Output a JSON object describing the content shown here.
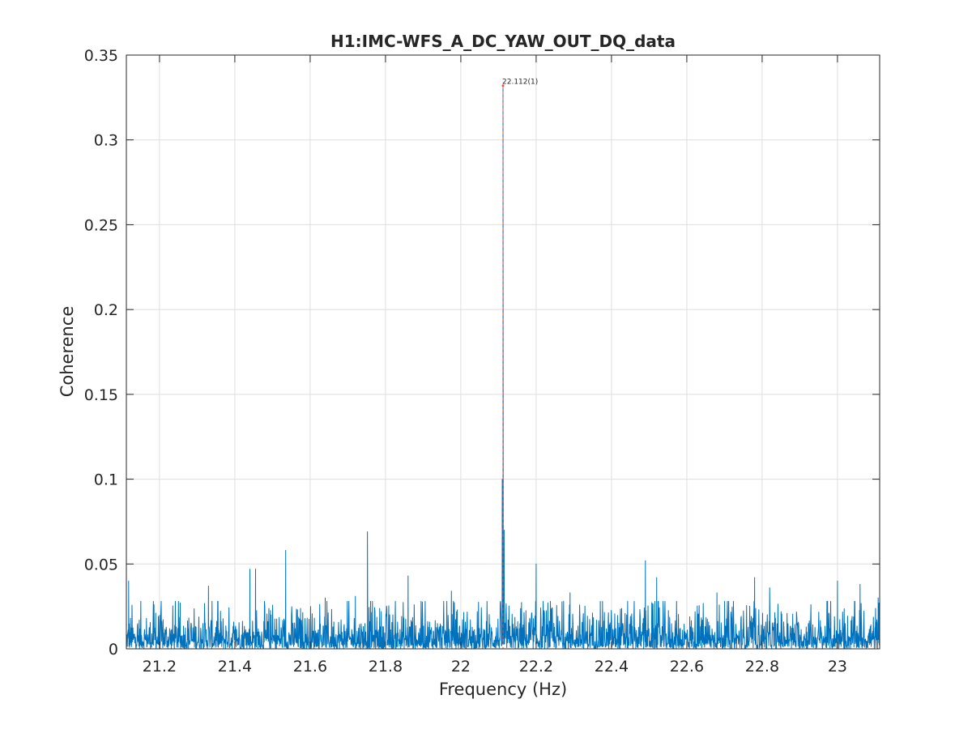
{
  "chart_data": {
    "type": "line",
    "title": "H1:IMC-WFS_A_DC_YAW_OUT_DQ_data",
    "xlabel": "Frequency (Hz)",
    "ylabel": "Coherence",
    "xlim": [
      21.112,
      23.112
    ],
    "ylim": [
      0,
      0.35
    ],
    "xticks": [
      21.2,
      21.4,
      21.6,
      21.8,
      22,
      22.2,
      22.4,
      22.6,
      22.8,
      23
    ],
    "xtick_labels": [
      "21.2",
      "21.4",
      "21.6",
      "21.8",
      "22",
      "22.2",
      "22.4",
      "22.6",
      "22.8",
      "23"
    ],
    "yticks": [
      0,
      0.05,
      0.1,
      0.15,
      0.2,
      0.25,
      0.3,
      0.35
    ],
    "ytick_labels": [
      "0",
      "0.05",
      "0.1",
      "0.15",
      "0.2",
      "0.25",
      "0.3",
      "0.35"
    ],
    "grid": true,
    "series": [
      {
        "color": "#0072bd",
        "noise_level": 0.008,
        "peaks": [
          {
            "x": 21.118,
            "y": 0.04
          },
          {
            "x": 21.19,
            "y": 0.021
          },
          {
            "x": 21.255,
            "y": 0.027
          },
          {
            "x": 21.33,
            "y": 0.037
          },
          {
            "x": 21.44,
            "y": 0.047
          },
          {
            "x": 21.455,
            "y": 0.047
          },
          {
            "x": 21.535,
            "y": 0.058
          },
          {
            "x": 21.64,
            "y": 0.03
          },
          {
            "x": 21.72,
            "y": 0.031
          },
          {
            "x": 21.752,
            "y": 0.069
          },
          {
            "x": 21.86,
            "y": 0.043
          },
          {
            "x": 21.975,
            "y": 0.034
          },
          {
            "x": 22.11,
            "y": 0.1
          },
          {
            "x": 22.112,
            "y": 0.332
          },
          {
            "x": 22.115,
            "y": 0.07
          },
          {
            "x": 22.2,
            "y": 0.05
          },
          {
            "x": 22.29,
            "y": 0.033
          },
          {
            "x": 22.49,
            "y": 0.052
          },
          {
            "x": 22.52,
            "y": 0.042
          },
          {
            "x": 22.68,
            "y": 0.033
          },
          {
            "x": 22.78,
            "y": 0.042
          },
          {
            "x": 22.82,
            "y": 0.036
          },
          {
            "x": 23.0,
            "y": 0.04
          },
          {
            "x": 23.06,
            "y": 0.038
          },
          {
            "x": 23.108,
            "y": 0.03
          }
        ]
      }
    ],
    "reference_line": {
      "x": 22.112,
      "color": "#d9534f",
      "style": "dashed"
    },
    "annotation": {
      "x": 22.112,
      "y": 0.332,
      "text": "22.112(1)"
    }
  }
}
